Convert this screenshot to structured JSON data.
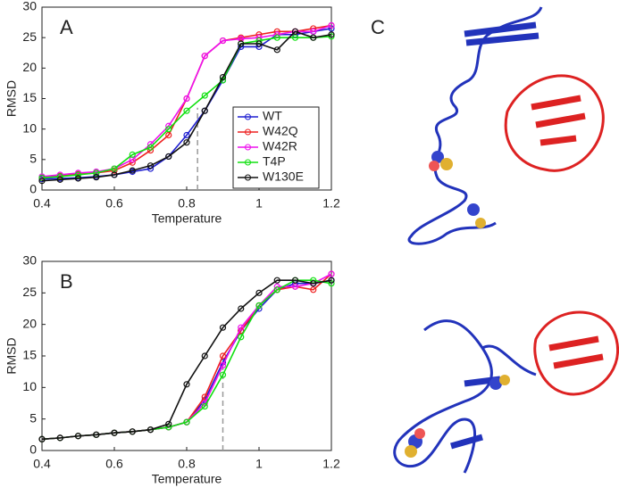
{
  "chart_data": [
    {
      "type": "line",
      "panel_label": "A",
      "x_label": "Temperature",
      "y_label": "RMSD",
      "x": [
        0.4,
        0.45,
        0.5,
        0.55,
        0.6,
        0.65,
        0.7,
        0.75,
        0.8,
        0.85,
        0.9,
        0.95,
        1.0,
        1.05,
        1.1,
        1.15,
        1.2
      ],
      "xlim": [
        0.4,
        1.2
      ],
      "xticks": [
        0.4,
        0.6,
        0.8,
        1,
        1.2
      ],
      "ylim": [
        0,
        30
      ],
      "yticks": [
        0,
        5,
        10,
        15,
        20,
        25,
        30
      ],
      "vline": 0.83,
      "legend": "right",
      "series": [
        {
          "name": "WT",
          "color": "#1f1fd0",
          "values": [
            1.8,
            1.9,
            2.0,
            2.2,
            2.5,
            3.0,
            3.5,
            5.5,
            9.0,
            13,
            18,
            23.5,
            23.5,
            25.5,
            25.5,
            26,
            26.5
          ]
        },
        {
          "name": "W42Q",
          "color": "#ee2020",
          "values": [
            2.0,
            2.3,
            2.6,
            2.8,
            3.2,
            4.5,
            6.5,
            9.0,
            15,
            22,
            24.5,
            25,
            25.5,
            26,
            26,
            26.5,
            27
          ]
        },
        {
          "name": "W42R",
          "color": "#ee10ee",
          "values": [
            2.2,
            2.5,
            2.8,
            3.0,
            3.5,
            5.0,
            7.5,
            10.5,
            15,
            22,
            24.5,
            24.8,
            25,
            25.5,
            26,
            26,
            27
          ]
        },
        {
          "name": "T4P",
          "color": "#10e010",
          "values": [
            2.0,
            2.2,
            2.5,
            2.8,
            3.5,
            5.8,
            7.0,
            10.0,
            13,
            15.5,
            18,
            24,
            24.5,
            25,
            25,
            25,
            25.2
          ]
        },
        {
          "name": "W130E",
          "color": "#111111",
          "values": [
            1.5,
            1.7,
            1.9,
            2.1,
            2.5,
            3.2,
            4.0,
            5.5,
            7.8,
            13,
            18.5,
            24,
            24,
            23,
            26,
            25,
            25.5
          ]
        }
      ]
    },
    {
      "type": "line",
      "panel_label": "B",
      "x_label": "Temperature",
      "y_label": "RMSD",
      "x": [
        0.4,
        0.45,
        0.5,
        0.55,
        0.6,
        0.65,
        0.7,
        0.75,
        0.8,
        0.85,
        0.9,
        0.95,
        1.0,
        1.05,
        1.1,
        1.15,
        1.2
      ],
      "xlim": [
        0.4,
        1.2
      ],
      "xticks": [
        0.4,
        0.6,
        0.8,
        1,
        1.2
      ],
      "ylim": [
        0,
        30
      ],
      "yticks": [
        0,
        5,
        10,
        15,
        20,
        25,
        30
      ],
      "vline": 0.9,
      "series": [
        {
          "color": "#1f1fd0",
          "values": [
            1.8,
            2.0,
            2.3,
            2.5,
            2.8,
            3.0,
            3.3,
            3.7,
            4.5,
            8,
            14,
            19,
            22.5,
            25.5,
            26.5,
            26.5,
            27
          ]
        },
        {
          "color": "#ee2020",
          "values": [
            1.8,
            2.0,
            2.3,
            2.5,
            2.8,
            3.0,
            3.3,
            3.7,
            4.5,
            8.5,
            15,
            19,
            23,
            25.5,
            26,
            25.5,
            28
          ]
        },
        {
          "color": "#ee10ee",
          "values": [
            1.8,
            2.0,
            2.3,
            2.5,
            2.8,
            3.0,
            3.3,
            3.7,
            4.5,
            7.5,
            13.5,
            19.5,
            23,
            26,
            26,
            26.5,
            28
          ]
        },
        {
          "color": "#10e010",
          "values": [
            1.8,
            2.0,
            2.3,
            2.5,
            2.8,
            3.0,
            3.3,
            3.7,
            4.5,
            7,
            12,
            18,
            23,
            25.5,
            27,
            27,
            26.5
          ]
        },
        {
          "color": "#111111",
          "values": [
            1.8,
            2.0,
            2.3,
            2.5,
            2.8,
            3.0,
            3.3,
            4.2,
            10.5,
            15,
            19.5,
            22.5,
            25,
            27,
            27,
            26.5,
            27
          ]
        }
      ]
    }
  ],
  "structure_panel": {
    "label": "C"
  }
}
